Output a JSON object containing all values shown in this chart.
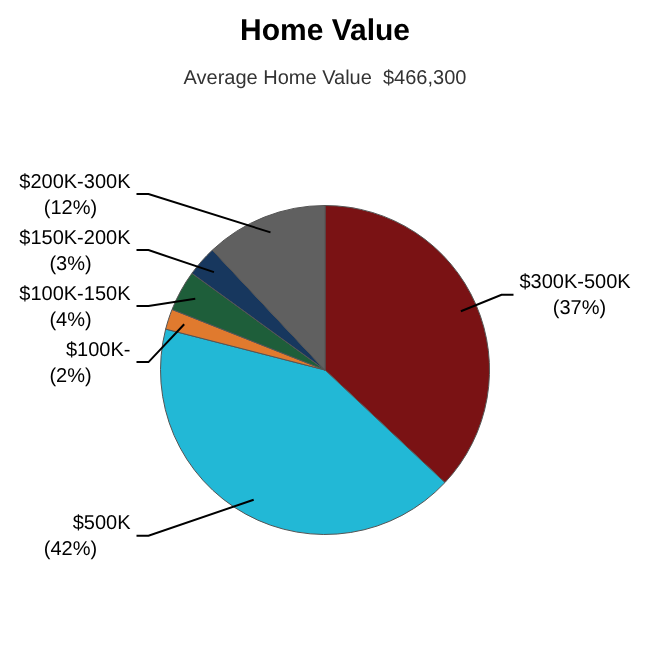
{
  "chart_data": {
    "type": "pie",
    "title": "Home Value",
    "subtitle": "Average Home Value  $466,300",
    "categories": [
      "$300K-500K",
      "$500K",
      "$100K-",
      "$100K-150K",
      "$150K-200K",
      "$200K-300K"
    ],
    "values": [
      37,
      42,
      2,
      4,
      3,
      12
    ],
    "value_labels": [
      "(37%)",
      "(42%)",
      "(2%)",
      "(4%)",
      "(3%)",
      "(12%)"
    ],
    "colors": [
      "#7a1214",
      "#22b8d6",
      "#e07a2e",
      "#1e5e3a",
      "#17375e",
      "#606060"
    ],
    "legend": false
  }
}
